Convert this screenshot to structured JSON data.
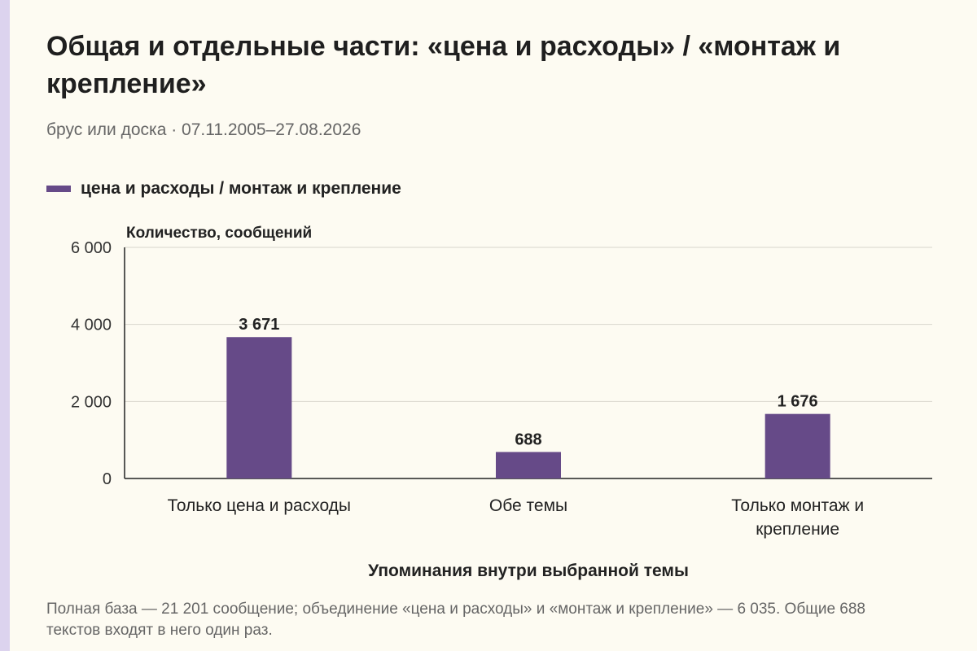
{
  "title": "Общая и отдельные части: «цена и расходы» / «монтаж и крепление»",
  "subtitle": "брус или доска · 07.11.2005–27.08.2026",
  "footnote": "Полная база — 21 201 сообщение; объединение «цена и расходы» и «монтаж и крепление» — 6 035. Общие 688 текстов входят в него один раз.",
  "colors": {
    "bar": "#664a88",
    "grid": "#d8d6cc",
    "axis": "#222222",
    "accent_strip": "#dcd3ee"
  },
  "chart_data": {
    "type": "bar",
    "categories": [
      "Только цена и расходы",
      "Обе темы",
      "Только монтаж и крепление"
    ],
    "series": [
      {
        "name": "цена и расходы / монтаж и крепление",
        "values": [
          3671,
          688,
          1676
        ],
        "labels": [
          "3 671",
          "688",
          "1 676"
        ]
      }
    ],
    "ylabel": "Количество, сообщений",
    "xlabel": "Упоминания внутри выбранной темы",
    "ylim": [
      0,
      6000
    ],
    "yticks": [
      0,
      2000,
      4000,
      6000
    ],
    "ytick_labels": [
      "0",
      "2 000",
      "4 000",
      "6 000"
    ],
    "grid": true,
    "legend_position": "top-left"
  }
}
